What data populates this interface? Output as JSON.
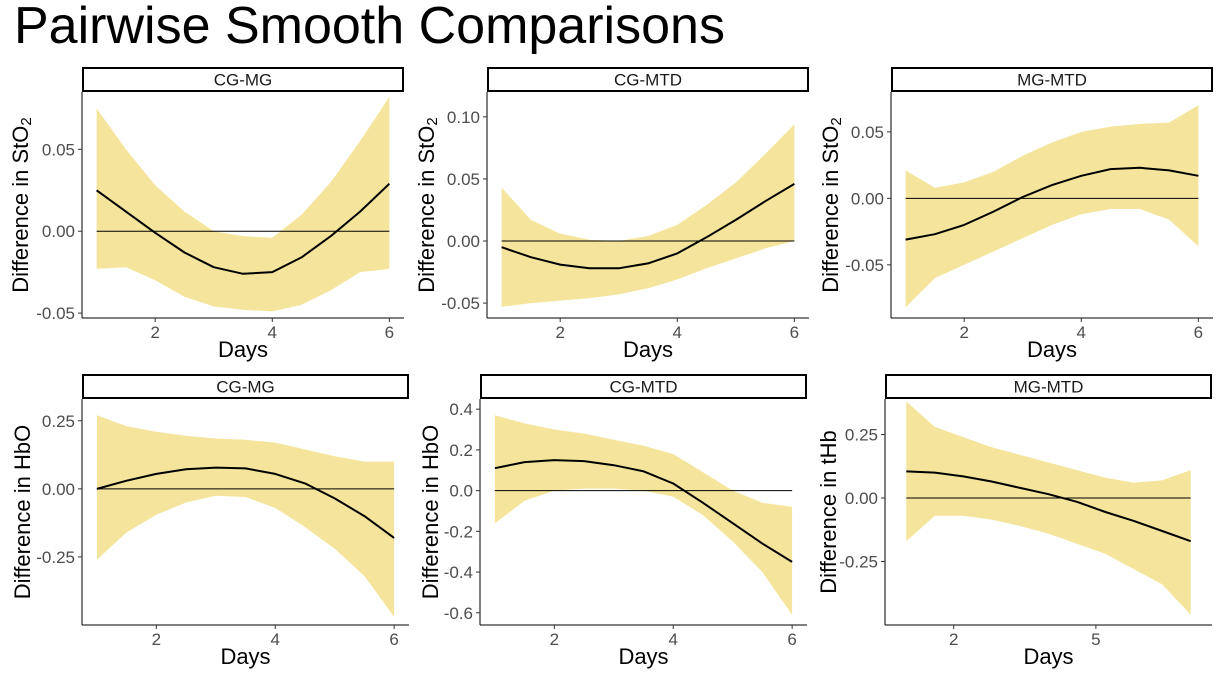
{
  "title": "Pairwise Smooth Comparisons",
  "chart_data": [
    {
      "type": "line",
      "panel": "CG-MG",
      "xlabel": "Days",
      "ylabel": "Difference in StO",
      "ylabel_sub": "2",
      "xlim": [
        0.75,
        6.25
      ],
      "ylim": [
        -0.053,
        0.085
      ],
      "xticks": [
        2,
        4,
        6
      ],
      "yticks": [
        -0.05,
        0.0,
        0.05
      ],
      "ytick_labels": [
        "-0.05",
        "0.00",
        "0.05"
      ],
      "x": [
        1,
        1.5,
        2,
        2.5,
        3,
        3.5,
        4,
        4.5,
        5,
        5.5,
        6
      ],
      "estimate": [
        0.025,
        0.012,
        -0.001,
        -0.013,
        -0.022,
        -0.026,
        -0.025,
        -0.016,
        -0.003,
        0.012,
        0.029
      ],
      "lower": [
        -0.023,
        -0.022,
        -0.03,
        -0.04,
        -0.046,
        -0.048,
        -0.049,
        -0.045,
        -0.036,
        -0.025,
        -0.023
      ],
      "upper": [
        0.075,
        0.05,
        0.028,
        0.012,
        0.0,
        -0.003,
        -0.004,
        0.01,
        0.03,
        0.055,
        0.082
      ],
      "reference_line": 0,
      "grid": false
    },
    {
      "type": "line",
      "panel": "CG-MTD",
      "xlabel": "Days",
      "ylabel": "Difference in StO",
      "ylabel_sub": "2",
      "xlim": [
        0.75,
        6.25
      ],
      "ylim": [
        -0.062,
        0.12
      ],
      "xticks": [
        2,
        4,
        6
      ],
      "yticks": [
        -0.05,
        0.0,
        0.05,
        0.1
      ],
      "ytick_labels": [
        "-0.05",
        "0.00",
        "0.05",
        "0.10"
      ],
      "x": [
        1,
        1.5,
        2,
        2.5,
        3,
        3.5,
        4,
        4.5,
        5,
        5.5,
        6
      ],
      "estimate": [
        -0.005,
        -0.013,
        -0.019,
        -0.022,
        -0.022,
        -0.018,
        -0.01,
        0.003,
        0.017,
        0.032,
        0.046
      ],
      "lower": [
        -0.053,
        -0.05,
        -0.048,
        -0.046,
        -0.043,
        -0.038,
        -0.031,
        -0.022,
        -0.014,
        -0.006,
        0.0
      ],
      "upper": [
        0.043,
        0.017,
        0.006,
        0.001,
        0.0,
        0.004,
        0.013,
        0.029,
        0.047,
        0.07,
        0.094
      ],
      "reference_line": 0,
      "grid": false
    },
    {
      "type": "line",
      "panel": "MG-MTD",
      "xlabel": "Days",
      "ylabel": "Difference in StO",
      "ylabel_sub": "2",
      "xlim": [
        0.75,
        6.25
      ],
      "ylim": [
        -0.09,
        0.08
      ],
      "xticks": [
        2,
        4,
        6
      ],
      "yticks": [
        -0.05,
        0.0,
        0.05
      ],
      "ytick_labels": [
        "-0.05",
        "0.00",
        "0.05"
      ],
      "x": [
        1,
        1.5,
        2,
        2.5,
        3,
        3.5,
        4,
        4.5,
        5,
        5.5,
        6
      ],
      "estimate": [
        -0.031,
        -0.027,
        -0.02,
        -0.01,
        0.001,
        0.01,
        0.017,
        0.022,
        0.023,
        0.021,
        0.017
      ],
      "lower": [
        -0.082,
        -0.06,
        -0.05,
        -0.04,
        -0.03,
        -0.02,
        -0.012,
        -0.008,
        -0.008,
        -0.016,
        -0.036
      ],
      "upper": [
        0.021,
        0.008,
        0.012,
        0.02,
        0.032,
        0.042,
        0.05,
        0.054,
        0.056,
        0.057,
        0.07
      ],
      "reference_line": 0,
      "grid": false
    },
    {
      "type": "line",
      "panel": "CG-MG",
      "xlabel": "Days",
      "ylabel": "Difference in HbO",
      "ylabel_sub": "",
      "xlim": [
        0.75,
        6.25
      ],
      "ylim": [
        -0.5,
        0.33
      ],
      "xticks": [
        2,
        4,
        6
      ],
      "yticks": [
        -0.25,
        0.0,
        0.25
      ],
      "ytick_labels": [
        "-0.25",
        "0.00",
        "0.25"
      ],
      "x": [
        1,
        1.5,
        2,
        2.5,
        3,
        3.5,
        4,
        4.5,
        5,
        5.5,
        6
      ],
      "estimate": [
        0.0,
        0.03,
        0.055,
        0.072,
        0.078,
        0.075,
        0.055,
        0.02,
        -0.035,
        -0.1,
        -0.18
      ],
      "lower": [
        -0.26,
        -0.16,
        -0.095,
        -0.05,
        -0.025,
        -0.03,
        -0.07,
        -0.14,
        -0.22,
        -0.32,
        -0.47
      ],
      "upper": [
        0.27,
        0.23,
        0.21,
        0.195,
        0.185,
        0.18,
        0.17,
        0.145,
        0.12,
        0.1,
        0.1
      ],
      "reference_line": 0,
      "grid": false
    },
    {
      "type": "line",
      "panel": "CG-MTD",
      "xlabel": "Days",
      "ylabel": "Difference in HbO",
      "ylabel_sub": "",
      "xlim": [
        0.75,
        6.25
      ],
      "ylim": [
        -0.66,
        0.45
      ],
      "xticks": [
        2,
        4,
        6
      ],
      "yticks": [
        -0.6,
        -0.4,
        -0.2,
        0.0,
        0.2,
        0.4
      ],
      "ytick_labels": [
        "-0.6",
        "-0.4",
        "-0.2",
        "0.0",
        "0.2",
        "0.4"
      ],
      "x": [
        1,
        1.5,
        2,
        2.5,
        3,
        3.5,
        4,
        4.5,
        5,
        5.5,
        6
      ],
      "estimate": [
        0.11,
        0.14,
        0.15,
        0.145,
        0.125,
        0.095,
        0.035,
        -0.06,
        -0.16,
        -0.26,
        -0.35
      ],
      "lower": [
        -0.16,
        -0.05,
        0.0,
        0.01,
        0.01,
        0.0,
        -0.03,
        -0.12,
        -0.25,
        -0.4,
        -0.61
      ],
      "upper": [
        0.37,
        0.33,
        0.3,
        0.28,
        0.25,
        0.22,
        0.18,
        0.09,
        0.0,
        -0.06,
        -0.08
      ],
      "reference_line": 0,
      "grid": false
    },
    {
      "type": "line",
      "panel": "MG-MTD",
      "xlabel": "Days",
      "ylabel": "Difference in tHb",
      "ylabel_sub": "",
      "xlim": [
        0.55,
        7.45
      ],
      "ylim": [
        -0.5,
        0.39
      ],
      "xticks": [
        2,
        5
      ],
      "yticks": [
        -0.25,
        0.0,
        0.25
      ],
      "ytick_labels": [
        "-0.25",
        "0.00",
        "0.25"
      ],
      "x": [
        1,
        1.6,
        2.2,
        2.8,
        3.4,
        4,
        4.6,
        5.2,
        5.8,
        6.4,
        7
      ],
      "estimate": [
        0.105,
        0.1,
        0.085,
        0.065,
        0.04,
        0.015,
        -0.015,
        -0.055,
        -0.09,
        -0.13,
        -0.17
      ],
      "lower": [
        -0.17,
        -0.07,
        -0.07,
        -0.085,
        -0.11,
        -0.14,
        -0.18,
        -0.22,
        -0.28,
        -0.34,
        -0.46
      ],
      "upper": [
        0.38,
        0.28,
        0.24,
        0.2,
        0.17,
        0.14,
        0.11,
        0.08,
        0.06,
        0.07,
        0.11
      ],
      "reference_line": 0,
      "grid": false
    }
  ]
}
